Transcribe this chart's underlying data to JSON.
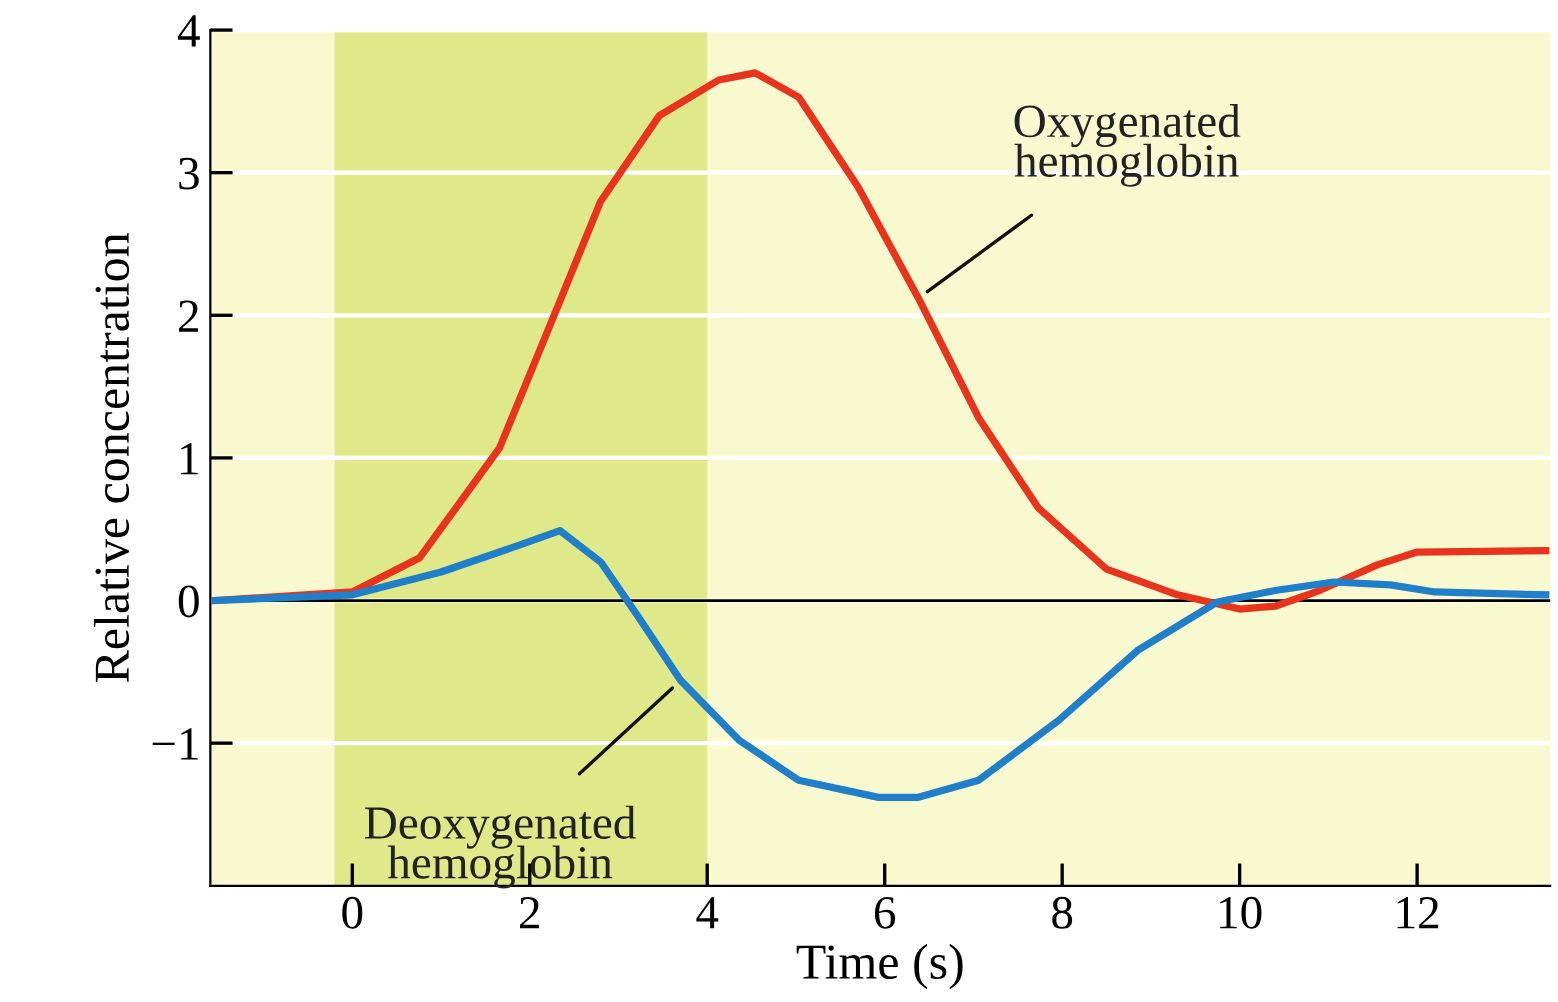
{
  "chart_data": {
    "type": "line",
    "xlabel": "Time (s)",
    "ylabel": "Relative concentration",
    "series": [
      {
        "name": "Oxygenated hemoglobin",
        "color": "#e8341c",
        "x": [
          -1.55,
          0,
          0.76,
          1.66,
          2.34,
          2.8,
          3.46,
          4.13,
          4.54,
          5.03,
          5.7,
          6.38,
          7.06,
          7.73,
          8.5,
          9.3,
          10.0,
          10.4,
          10.9,
          11.55,
          12.0,
          13.45
        ],
        "values": [
          0,
          0.06,
          0.3,
          1.07,
          2.1,
          2.8,
          3.4,
          3.65,
          3.7,
          3.53,
          2.9,
          2.12,
          1.28,
          0.65,
          0.22,
          0.04,
          -0.06,
          -0.04,
          0.07,
          0.25,
          0.34,
          0.35
        ]
      },
      {
        "name": "Deoxygenated hemoglobin",
        "color": "#1f7fc8",
        "x": [
          -1.55,
          0,
          1.0,
          1.89,
          2.34,
          2.8,
          3.24,
          3.7,
          4.36,
          5.03,
          5.93,
          6.38,
          7.06,
          7.96,
          8.85,
          9.75,
          10.4,
          11.06,
          11.7,
          12.2,
          13.45
        ],
        "values": [
          0,
          0.04,
          0.2,
          0.39,
          0.49,
          0.27,
          -0.13,
          -0.56,
          -0.98,
          -1.26,
          -1.38,
          -1.38,
          -1.26,
          -0.84,
          -0.35,
          -0.01,
          0.07,
          0.13,
          0.11,
          0.06,
          0.04
        ]
      }
    ],
    "xlim": [
      -1.6,
      13.5
    ],
    "ylim": [
      -2,
      4
    ],
    "xticks": [
      0,
      2,
      4,
      6,
      8,
      10,
      12
    ],
    "yticks": [
      {
        "value": -1,
        "label": "−1"
      },
      0,
      1,
      2,
      3,
      4
    ],
    "ref_lines": [
      {
        "axis": "y",
        "value": 0,
        "color": "#000000"
      }
    ],
    "bands": [
      {
        "axis": "x",
        "from": -0.2,
        "to": 4,
        "color": "#dfe98a"
      }
    ],
    "grid": "y",
    "legend": false,
    "marker": "none",
    "line_style": "solid"
  }
}
